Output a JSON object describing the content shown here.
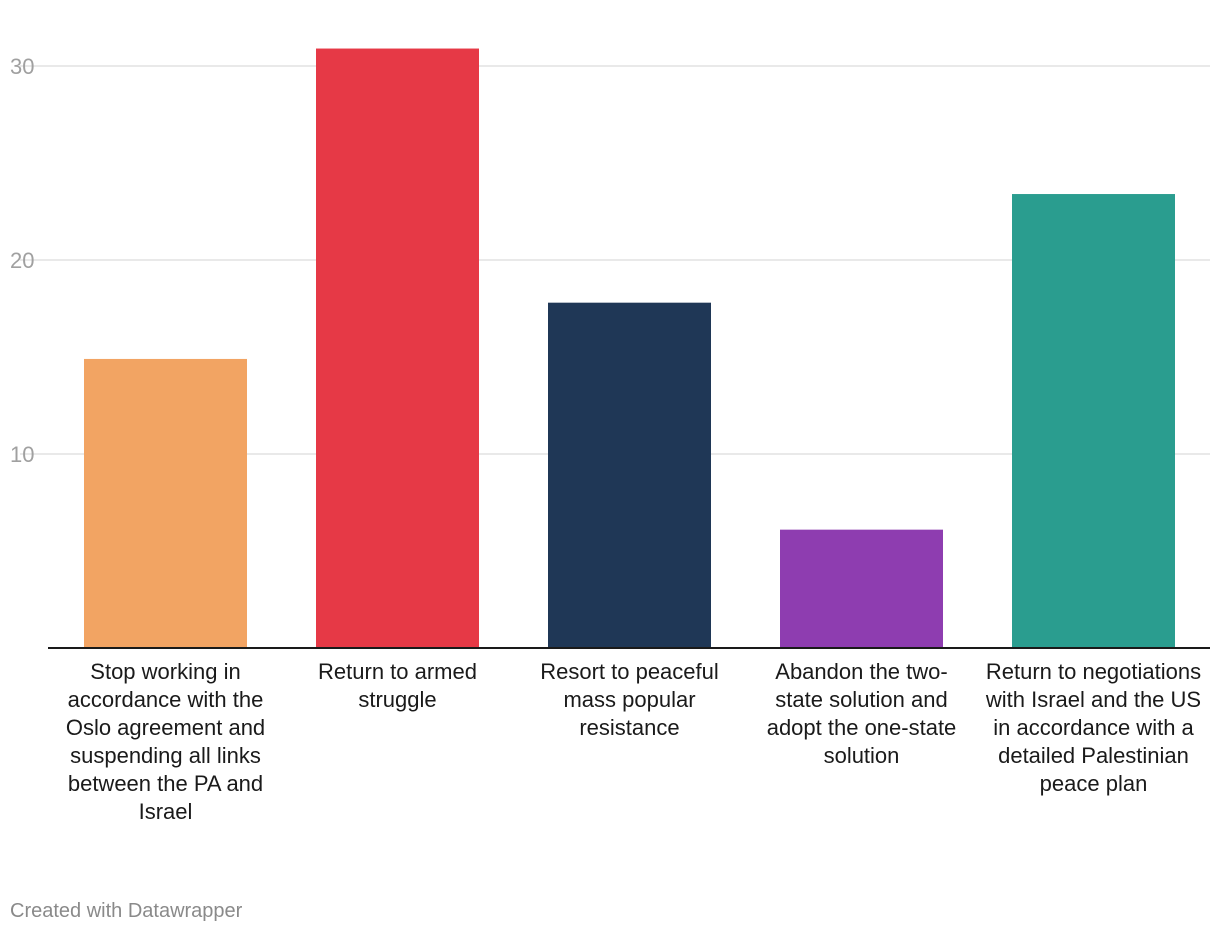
{
  "chart_data": {
    "type": "bar",
    "categories": [
      "Stop working in accordance with the Oslo agreement and suspending all links between the PA and Israel",
      "Return to armed struggle",
      "Resort to peaceful mass popular resistance",
      "Abandon the two-state solution and adopt the one-state solution",
      "Return to negotiations with Israel and the US in accordance with a detailed Palestinian peace plan"
    ],
    "values": [
      14.9,
      30.9,
      17.8,
      6.1,
      23.4
    ],
    "colors": [
      "#f2a463",
      "#e63946",
      "#1f3756",
      "#8e3db0",
      "#2a9d8f"
    ],
    "yticks": [
      "10",
      "20",
      "30"
    ],
    "ylim": [
      0,
      33
    ],
    "grid": true,
    "title": "",
    "xlabel": "",
    "ylabel": ""
  },
  "footer": {
    "credit": "Created with Datawrapper"
  }
}
